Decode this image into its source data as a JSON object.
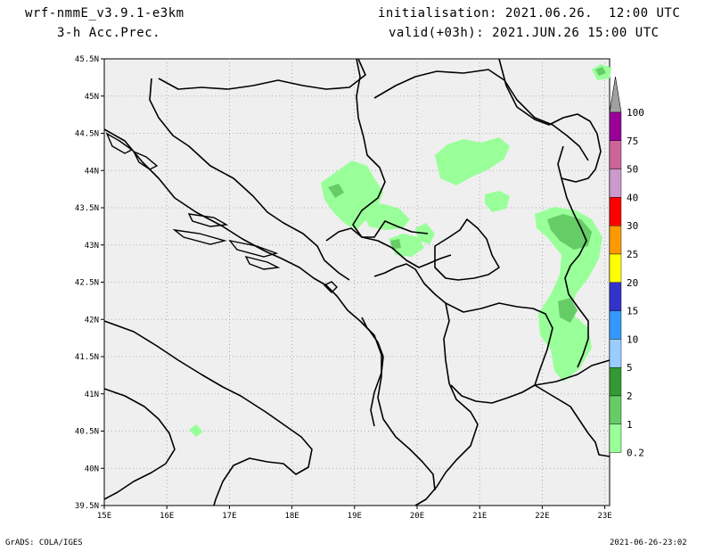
{
  "header": {
    "model": "wrf-nmmE_v3.9.1-e3km",
    "variable": "3-h Acc.Prec.",
    "init": "initialisation: 2021.06.26.  12:00 UTC",
    "valid": "valid(+03h): 2021.JUN.26 15:00 UTC"
  },
  "footer": {
    "credit": "GrADS: COLA/IGES",
    "timestamp": "2021-06-26-23:02"
  },
  "map": {
    "lon_labels": [
      "15E",
      "16E",
      "17E",
      "18E",
      "19E",
      "20E",
      "21E",
      "22E",
      "23E"
    ],
    "lat_labels": [
      "45.5N",
      "45N",
      "44.5N",
      "44N",
      "43.5N",
      "43N",
      "42.5N",
      "42N",
      "41.5N",
      "41N",
      "40.5N",
      "40N",
      "39.5N"
    ],
    "background_color": "#efefef",
    "grid": "dotted"
  },
  "legend": {
    "labels": [
      "100",
      "75",
      "50",
      "40",
      "30",
      "25",
      "20",
      "15",
      "10",
      "5",
      "2",
      "1",
      "0.2"
    ],
    "colors": [
      "#990099",
      "#cc6699",
      "#cc99cc",
      "#ff0000",
      "#ff9900",
      "#ffff00",
      "#3333cc",
      "#3399ff",
      "#99ccff",
      "#339933",
      "#66cc66",
      "#99ff99"
    ],
    "top_color": "#a0a0a0"
  }
}
